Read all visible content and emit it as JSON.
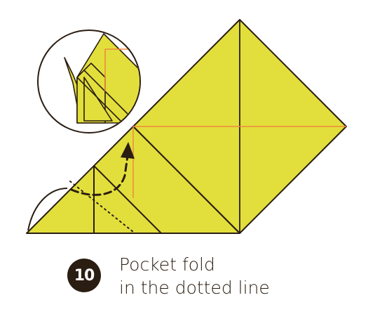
{
  "step": {
    "number": "10",
    "line1": "Pocket fold",
    "line2": "in the dotted line"
  },
  "colors": {
    "paper": "#e2df3c",
    "line": "#2a1d12",
    "crease": "#f08a3c",
    "background": "#ffffff"
  },
  "icons": {
    "arrow": "curved-dashed-arrow",
    "inset": "result-preview-circle"
  }
}
